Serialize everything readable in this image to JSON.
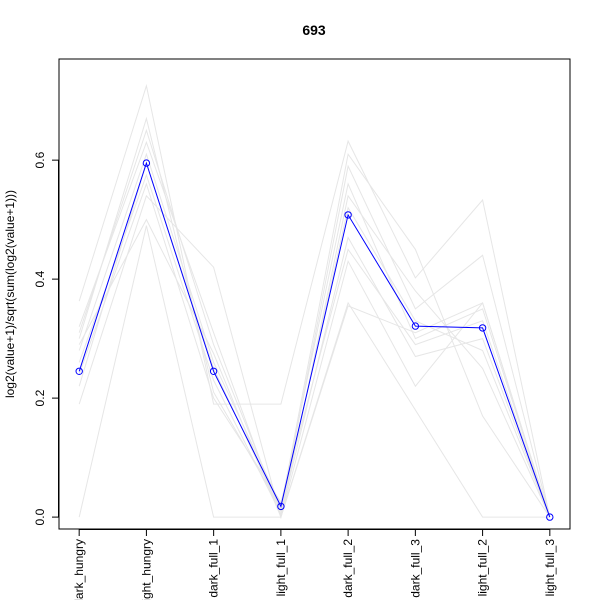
{
  "chart_data": {
    "type": "line",
    "title": "693",
    "xlabel": "",
    "ylabel": "log2(value+1)/sqrt(sum(log2(value+1)))",
    "categories": [
      "dark_hungry",
      "light_hungry",
      "dark_full_1",
      "light_full_1",
      "dark_full_2",
      "dark_full_3",
      "light_full_2",
      "light_full_3"
    ],
    "xlim": [
      0.7,
      8.3
    ],
    "ylim": [
      -0.02,
      0.77
    ],
    "y_ticks": [
      0.0,
      0.2,
      0.4,
      0.6
    ],
    "y_tick_labels": [
      "0.0",
      "0.2",
      "0.4",
      "0.6"
    ],
    "grid": false,
    "legend": "none",
    "highlight_series": {
      "color": "#0000ff",
      "marker": "open-circle",
      "values": [
        0.245,
        0.595,
        0.245,
        0.018,
        0.508,
        0.321,
        0.318,
        0.0
      ]
    },
    "background_series": {
      "color": "#e6e6e6",
      "lines": [
        [
          0.363,
          0.725,
          0.19,
          0.19,
          0.632,
          0.402,
          0.533,
          0.0
        ],
        [
          0.0,
          0.49,
          0.0,
          0.0,
          0.36,
          0.18,
          0.0,
          0.0
        ],
        [
          0.19,
          0.54,
          0.42,
          0.0,
          0.43,
          0.22,
          0.36,
          0.0
        ],
        [
          0.31,
          0.65,
          0.29,
          0.01,
          0.59,
          0.35,
          0.44,
          0.0
        ],
        [
          0.28,
          0.61,
          0.26,
          0.02,
          0.56,
          0.3,
          0.35,
          0.0
        ],
        [
          0.3,
          0.67,
          0.21,
          0.015,
          0.61,
          0.45,
          0.17,
          0.0
        ],
        [
          0.26,
          0.575,
          0.23,
          0.005,
          0.47,
          0.27,
          0.3,
          0.0
        ],
        [
          0.32,
          0.63,
          0.31,
          0.0,
          0.54,
          0.38,
          0.25,
          0.0
        ],
        [
          0.24,
          0.56,
          0.2,
          0.025,
          0.45,
          0.29,
          0.33,
          0.0
        ],
        [
          0.22,
          0.595,
          0.25,
          0.01,
          0.52,
          0.33,
          0.28,
          0.0
        ],
        [
          0.29,
          0.5,
          0.275,
          0.0,
          0.355,
          0.31,
          0.36,
          0.0
        ]
      ]
    }
  }
}
